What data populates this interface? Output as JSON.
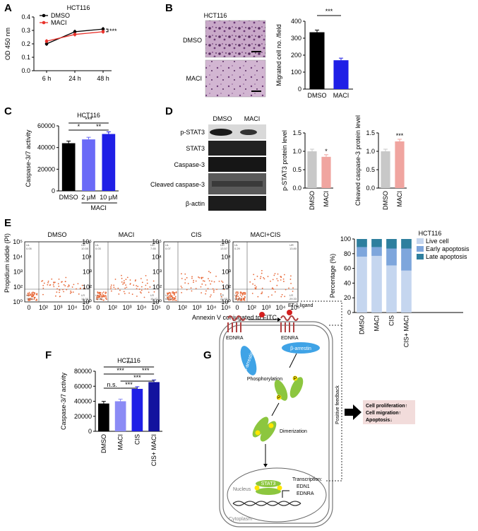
{
  "panel_letters": [
    "A",
    "B",
    "C",
    "D",
    "E",
    "F",
    "G"
  ],
  "chart_data": [
    {
      "panel": "A",
      "type": "line",
      "title": "HCT116",
      "xlabel": "",
      "ylabel": "OD 450 nm",
      "categories": [
        "6 h",
        "24 h",
        "48 h"
      ],
      "yticks": [
        "0.0",
        "0.1",
        "0.2",
        "0.3",
        "0.4"
      ],
      "ylim": [
        0,
        0.4
      ],
      "series": [
        {
          "name": "DMSO",
          "color": "#000000",
          "values": [
            0.2,
            0.29,
            0.31
          ]
        },
        {
          "name": "MACI",
          "color": "#e8322b",
          "values": [
            0.22,
            0.27,
            0.29
          ]
        }
      ],
      "significance": "***",
      "legend": "top-left"
    },
    {
      "panel": "B",
      "type": "bar",
      "title": "",
      "xlabel": "",
      "ylabel": "Migrated cell no. /field",
      "categories": [
        "DMSO",
        "MACI"
      ],
      "values": [
        335,
        170
      ],
      "colors": [
        "#000000",
        "#1f1fe6"
      ],
      "yticks": [
        "0",
        "100",
        "200",
        "300",
        "400"
      ],
      "ylim": [
        0,
        400
      ],
      "significance": "***"
    },
    {
      "panel": "C",
      "type": "bar",
      "title": "HCT116",
      "xlabel": "",
      "ylabel": "Caspase-3/7 activity",
      "categories": [
        "DMSO",
        "2 μM",
        "10 μM"
      ],
      "group_label": "MACI",
      "values": [
        44000,
        47500,
        52500
      ],
      "colors": [
        "#000000",
        "#6a6af7",
        "#1f1fe6"
      ],
      "yticks": [
        "0",
        "20000",
        "40000",
        "60000"
      ],
      "ylim": [
        0,
        60000
      ],
      "significance": [
        "*",
        "**",
        "***"
      ]
    },
    {
      "panel": "D-left",
      "type": "bar",
      "title": "",
      "xlabel": "",
      "ylabel": "p-STAT3 protein level",
      "categories": [
        "DMSO",
        "MACI"
      ],
      "values": [
        1.0,
        0.85
      ],
      "colors": [
        "#c8c8c8",
        "#f0a5a0"
      ],
      "yticks": [
        "0.0",
        "0.5",
        "1.0",
        "1.5"
      ],
      "ylim": [
        0,
        1.5
      ],
      "significance": "*"
    },
    {
      "panel": "D-right",
      "type": "bar",
      "title": "",
      "xlabel": "",
      "ylabel": "Cleaved caspase-3 protein level",
      "categories": [
        "DMSO",
        "MACI"
      ],
      "values": [
        1.0,
        1.27
      ],
      "colors": [
        "#c8c8c8",
        "#f0a5a0"
      ],
      "yticks": [
        "0.0",
        "0.5",
        "1.0",
        "1.5"
      ],
      "ylim": [
        0,
        1.5
      ],
      "significance": "***"
    },
    {
      "panel": "E-right",
      "type": "bar",
      "title": "HCT116",
      "xlabel": "",
      "ylabel": "Percentage (%)",
      "stacked": true,
      "categories": [
        "DMSO",
        "MACI",
        "CIS",
        "CIS+ MACI"
      ],
      "series": [
        {
          "name": "Live cell",
          "color": "#c5d6ef",
          "values": [
            76,
            77,
            64,
            57
          ]
        },
        {
          "name": "Early apoptosis",
          "color": "#7ea6dc",
          "values": [
            13,
            12,
            23,
            30
          ]
        },
        {
          "name": "Late apoptosis",
          "color": "#2e7f9e",
          "values": [
            11,
            11,
            13,
            13
          ]
        }
      ],
      "yticks": [
        "0",
        "20",
        "40",
        "60",
        "80",
        "100"
      ],
      "ylim": [
        0,
        100
      ],
      "legend": "top-right"
    },
    {
      "panel": "F",
      "type": "bar",
      "title": "HCT116",
      "xlabel": "",
      "ylabel": "Caspase-3/7 activity",
      "categories": [
        "DMSO",
        "MACI",
        "CIS",
        "CIS+ MACI"
      ],
      "values": [
        37000,
        40000,
        56500,
        65500
      ],
      "colors": [
        "#000000",
        "#8b8bf5",
        "#1f1fe6",
        "#12129e"
      ],
      "yticks": [
        "0",
        "20000",
        "40000",
        "60000",
        "80000"
      ],
      "ylim": [
        0,
        80000
      ],
      "significance": [
        "n.s.",
        "***",
        "***",
        "***",
        "***",
        "**"
      ]
    }
  ],
  "panelB": {
    "title": "HCT116",
    "row_labels": [
      "DMSO",
      "MACI"
    ]
  },
  "panelD": {
    "lane_labels": [
      "DMSO",
      "MACI"
    ],
    "blot_labels": [
      "p-STAT3",
      "STAT3",
      "Caspase-3",
      "Cleaved caspase-3",
      "β-actin"
    ]
  },
  "panelE": {
    "y_label": "Propidium iodide (PI)",
    "x_label": "Annexin V conjugated to FITC",
    "y_ticks": [
      "10⁰",
      "10²",
      "10³",
      "10⁴",
      "10⁵"
    ],
    "x_ticks": [
      "0",
      "10²",
      "10³",
      "10⁴",
      "10⁵"
    ],
    "plots": [
      {
        "title": "DMSO",
        "UL": "UL",
        "UR": "UR",
        "LL": "LL",
        "LR": "LR",
        "ul_val": "0.05",
        "ur_val": "10.55",
        "ll_val": "75.41",
        "lr_val": "14.00"
      },
      {
        "title": "MACI",
        "UL": "UL",
        "UR": "UR",
        "LL": "LL",
        "LR": "LR",
        "ul_val": "0.03",
        "ur_val": "7.65",
        "ll_val": "76.88",
        "lr_val": "15.47"
      },
      {
        "title": "CIS",
        "UL": "UL",
        "UR": "UR",
        "LL": "LL",
        "LR": "LR",
        "ul_val": "0.07",
        "ur_val": "13.57",
        "ll_val": "63.84",
        "lr_val": "22.53"
      },
      {
        "title": "MACI+CIS",
        "UL": "UL",
        "UR": "UR",
        "LL": "LL",
        "LR": "LR",
        "ul_val": "0.29",
        "ur_val": "13.80",
        "ll_val": "56.89",
        "lr_val": "29.33"
      }
    ]
  },
  "panelG": {
    "ligand": "ET-1 ligand",
    "receptor": "EDNRA",
    "b_arrestin": "β-arrestin",
    "phosphorylation": "Phosphorylation",
    "stat3": "STAT3",
    "p": "P",
    "dimerization": "Dimerization",
    "nucleus": "Nucleus",
    "transcription": "Transcription:",
    "gene1": "EDN1",
    "gene2": "EDNRA",
    "cytoplasm": "Cytoplasm",
    "feedback": "Positive feedback",
    "outcome1": "Cell proliferation↑",
    "outcome2": "Cell migration↑",
    "outcome3": "Apoptosis↓"
  }
}
